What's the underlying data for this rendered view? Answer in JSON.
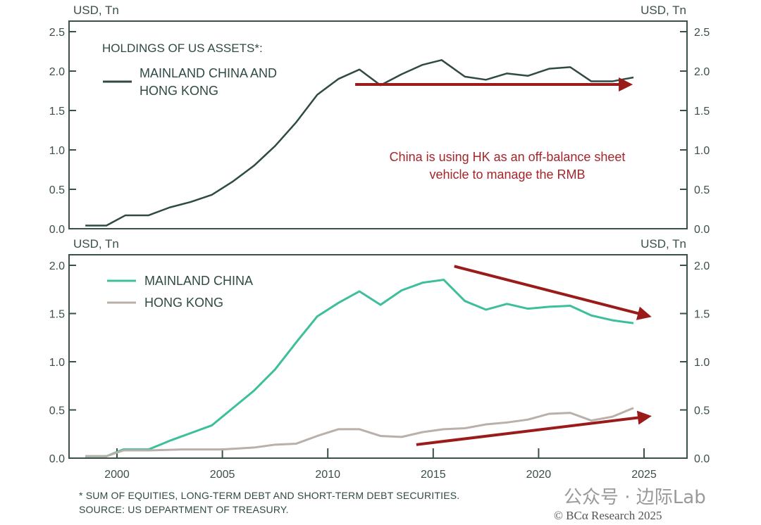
{
  "colors": {
    "frame": "#3b4f4b",
    "combined": "#2f4a45",
    "mainland": "#3dbf9c",
    "hongkong": "#b9b0a9",
    "arrow": "#9b1b1b",
    "annotation": "#a3262b"
  },
  "chart_data": [
    {
      "type": "line",
      "ylabel_left": "USD, Tn",
      "ylabel_right": "USD, Tn",
      "ylim": [
        0,
        2.5
      ],
      "yticks": [
        "0.0",
        "0.5",
        "1.0",
        "1.5",
        "2.0",
        "2.5"
      ],
      "xlim": [
        1997.5,
        2026.5
      ],
      "legend_title": "HOLDINGS OF US ASSETS*:",
      "series": [
        {
          "name": "MAINLAND CHINA AND HONG KONG",
          "color": "#2f4a45",
          "x": [
            1998.5,
            1999.5,
            2000.4,
            2001.5,
            2002.5,
            2003.5,
            2004.5,
            2005.5,
            2006.5,
            2007.5,
            2008.5,
            2009.5,
            2010.5,
            2011.5,
            2012.5,
            2013.5,
            2014.5,
            2015.4,
            2016.5,
            2017.5,
            2018.5,
            2019.5,
            2020.5,
            2021.5,
            2022.5,
            2023.5,
            2024.5
          ],
          "y": [
            0.04,
            0.04,
            0.17,
            0.17,
            0.27,
            0.34,
            0.43,
            0.6,
            0.8,
            1.05,
            1.35,
            1.7,
            1.9,
            2.02,
            1.82,
            1.96,
            2.08,
            2.14,
            1.93,
            1.89,
            1.97,
            1.94,
            2.03,
            2.05,
            1.87,
            1.87,
            1.92
          ]
        }
      ],
      "arrows": [
        {
          "from": [
            2011.3,
            1.83
          ],
          "to": [
            2024.2,
            1.83
          ]
        }
      ],
      "annotation": [
        "China is using HK as an off-balance sheet",
        "vehicle to manage the RMB"
      ]
    },
    {
      "type": "line",
      "ylabel_left": "USD, Tn",
      "ylabel_right": "USD, Tn",
      "ylim": [
        0,
        2.0
      ],
      "yticks": [
        "0.0",
        "0.5",
        "1.0",
        "1.5",
        "2.0"
      ],
      "xlim": [
        1997.5,
        2026.5
      ],
      "xticks": [
        "2000",
        "2005",
        "2010",
        "2015",
        "2020",
        "2025"
      ],
      "series": [
        {
          "name": "MAINLAND CHINA",
          "color": "#3dbf9c",
          "x": [
            1998.5,
            1999.5,
            2000.3,
            2001.5,
            2002.5,
            2003.5,
            2004.5,
            2005.5,
            2006.5,
            2007.5,
            2008.5,
            2009.5,
            2010.5,
            2011.5,
            2012.5,
            2013.5,
            2014.5,
            2015.5,
            2016.5,
            2017.5,
            2018.5,
            2019.5,
            2020.5,
            2021.5,
            2022.5,
            2023.5,
            2024.5
          ],
          "y": [
            0.02,
            0.02,
            0.09,
            0.09,
            0.18,
            0.26,
            0.34,
            0.52,
            0.7,
            0.92,
            1.2,
            1.47,
            1.61,
            1.73,
            1.59,
            1.74,
            1.82,
            1.85,
            1.63,
            1.54,
            1.6,
            1.55,
            1.57,
            1.58,
            1.48,
            1.43,
            1.4
          ]
        },
        {
          "name": "HONG KONG",
          "color": "#b9b0a9",
          "x": [
            1998.5,
            1999.5,
            2000.3,
            2001.5,
            2003,
            2005,
            2006.5,
            2007.5,
            2008.5,
            2009.5,
            2010.5,
            2011.5,
            2012.5,
            2013.5,
            2014.5,
            2015.5,
            2016.5,
            2017.5,
            2018.5,
            2019.5,
            2020.5,
            2021.5,
            2022.5,
            2023.5,
            2024.5
          ],
          "y": [
            0.02,
            0.02,
            0.08,
            0.08,
            0.09,
            0.09,
            0.11,
            0.14,
            0.15,
            0.23,
            0.3,
            0.3,
            0.23,
            0.22,
            0.27,
            0.3,
            0.31,
            0.35,
            0.37,
            0.4,
            0.46,
            0.47,
            0.39,
            0.43,
            0.52
          ]
        }
      ],
      "arrows": [
        {
          "from": [
            2016,
            1.99
          ],
          "to": [
            2025.1,
            1.48
          ]
        },
        {
          "from": [
            2014.2,
            0.14
          ],
          "to": [
            2025.1,
            0.43
          ]
        }
      ]
    }
  ],
  "footnote": "* SUM OF EQUITIES, LONG-TERM DEBT AND SHORT-TERM DEBT SECURITIES.",
  "source": "SOURCE: US DEPARTMENT OF TREASURY.",
  "copyright": "© BCα Research 2025",
  "watermark": "公众号 · 边际Lab"
}
